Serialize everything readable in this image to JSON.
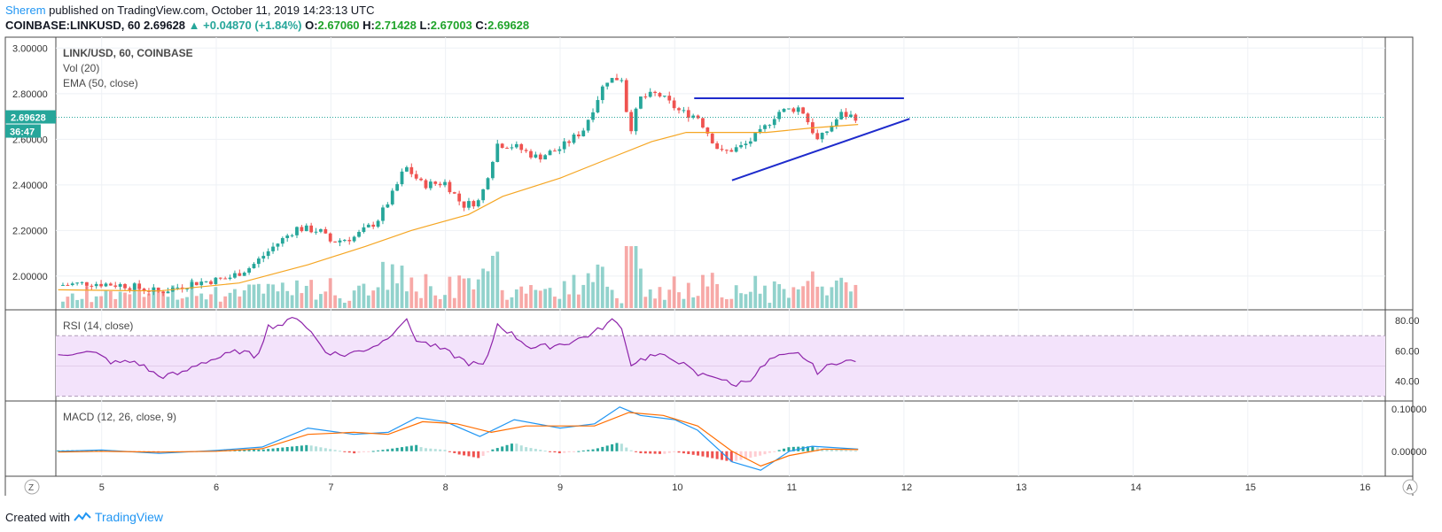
{
  "header": {
    "author": "Sherem",
    "published_text": "published on TradingView.com, October 11, 2019 14:23:13 UTC",
    "symbol": "COINBASE:LINKUSD, 60",
    "last": "2.69628",
    "change": "▲ +0.04870 (+1.84%)",
    "open_label": "O:",
    "open": "2.67060",
    "high_label": "H:",
    "high": "2.71428",
    "low_label": "L:",
    "low": "2.67003",
    "close_label": "C:",
    "close": "2.69628"
  },
  "footer": {
    "created_with": "Created with",
    "brand": "TradingView"
  },
  "colors": {
    "up": "#26a69a",
    "down": "#ef5350",
    "ema": "#f5a623",
    "trend": "#1e2bcc",
    "rsi": "#8e24aa",
    "rsi_band": "#f3e3fb",
    "macd": "#2196f3",
    "signal": "#ff6d00"
  },
  "chart_data": [
    {
      "type": "candlestick",
      "title": "LINK/USD, 60, COINBASE",
      "indicators": [
        "Vol (20)",
        "EMA (50, close)"
      ],
      "ylim": [
        1.86,
        3.04
      ],
      "y_ticks": [
        "3.00000",
        "2.80000",
        "2.60000",
        "2.40000",
        "2.20000",
        "2.00000"
      ],
      "x_ticks": [
        "5",
        "6",
        "7",
        "8",
        "9",
        "10",
        "11",
        "12",
        "13",
        "14",
        "15",
        "16"
      ],
      "x_range": [
        4.6,
        16.2
      ],
      "last_price_label": "2.69628",
      "last_price": 2.69628,
      "countdown_label": "36:47",
      "price_path": [
        [
          4.62,
          1.96
        ],
        [
          4.9,
          1.97
        ],
        [
          5.2,
          1.96
        ],
        [
          5.5,
          1.93
        ],
        [
          5.8,
          1.97
        ],
        [
          6.1,
          1.99
        ],
        [
          6.3,
          2.04
        ],
        [
          6.5,
          2.13
        ],
        [
          6.7,
          2.21
        ],
        [
          6.9,
          2.2
        ],
        [
          7.0,
          2.15
        ],
        [
          7.2,
          2.17
        ],
        [
          7.4,
          2.24
        ],
        [
          7.55,
          2.37
        ],
        [
          7.65,
          2.48
        ],
        [
          7.8,
          2.4
        ],
        [
          8.0,
          2.41
        ],
        [
          8.15,
          2.31
        ],
        [
          8.3,
          2.33
        ],
        [
          8.45,
          2.58
        ],
        [
          8.6,
          2.57
        ],
        [
          8.8,
          2.52
        ],
        [
          9.0,
          2.56
        ],
        [
          9.2,
          2.64
        ],
        [
          9.4,
          2.86
        ],
        [
          9.55,
          2.87
        ],
        [
          9.6,
          2.62
        ],
        [
          9.7,
          2.78
        ],
        [
          9.85,
          2.8
        ],
        [
          10.05,
          2.72
        ],
        [
          10.2,
          2.7
        ],
        [
          10.4,
          2.54
        ],
        [
          10.6,
          2.57
        ],
        [
          10.75,
          2.63
        ],
        [
          10.9,
          2.72
        ],
        [
          11.1,
          2.74
        ],
        [
          11.25,
          2.59
        ],
        [
          11.45,
          2.71
        ],
        [
          11.6,
          2.69628
        ]
      ],
      "ema_path": [
        [
          4.62,
          1.94
        ],
        [
          5.5,
          1.935
        ],
        [
          6.2,
          1.97
        ],
        [
          6.8,
          2.05
        ],
        [
          7.3,
          2.13
        ],
        [
          7.7,
          2.2
        ],
        [
          8.2,
          2.27
        ],
        [
          8.5,
          2.35
        ],
        [
          9.0,
          2.43
        ],
        [
          9.4,
          2.51
        ],
        [
          9.8,
          2.59
        ],
        [
          10.1,
          2.63
        ],
        [
          10.4,
          2.63
        ],
        [
          10.8,
          2.63
        ],
        [
          11.2,
          2.65
        ],
        [
          11.6,
          2.665
        ]
      ],
      "trendlines": [
        {
          "name": "resistance",
          "from": [
            10.17,
            2.78
          ],
          "to": [
            12.0,
            2.78
          ]
        },
        {
          "name": "support",
          "from": [
            10.5,
            2.42
          ],
          "to": [
            12.05,
            2.69
          ]
        }
      ],
      "volume_ylim": [
        0,
        1
      ]
    },
    {
      "type": "line",
      "title": "RSI (14, close)",
      "ylim": [
        28,
        86
      ],
      "y_ticks": [
        "80.00",
        "60.00",
        "40.00"
      ],
      "band": [
        30,
        70
      ],
      "values_path": [
        [
          4.62,
          56
        ],
        [
          4.8,
          60
        ],
        [
          4.95,
          58
        ],
        [
          5.1,
          52
        ],
        [
          5.3,
          53
        ],
        [
          5.4,
          48
        ],
        [
          5.5,
          43
        ],
        [
          5.7,
          45
        ],
        [
          5.85,
          52
        ],
        [
          6.0,
          55
        ],
        [
          6.2,
          60
        ],
        [
          6.35,
          56
        ],
        [
          6.45,
          76
        ],
        [
          6.6,
          78
        ],
        [
          6.7,
          83
        ],
        [
          6.8,
          75
        ],
        [
          6.95,
          60
        ],
        [
          7.1,
          57
        ],
        [
          7.3,
          61
        ],
        [
          7.45,
          66
        ],
        [
          7.65,
          81
        ],
        [
          7.75,
          67
        ],
        [
          7.9,
          63
        ],
        [
          8.05,
          58
        ],
        [
          8.2,
          52
        ],
        [
          8.35,
          50
        ],
        [
          8.45,
          78
        ],
        [
          8.6,
          70
        ],
        [
          8.75,
          62
        ],
        [
          8.9,
          63
        ],
        [
          9.1,
          66
        ],
        [
          9.3,
          72
        ],
        [
          9.45,
          80
        ],
        [
          9.55,
          76
        ],
        [
          9.6,
          51
        ],
        [
          9.8,
          57
        ],
        [
          10.0,
          55
        ],
        [
          10.2,
          44
        ],
        [
          10.35,
          44
        ],
        [
          10.5,
          37
        ],
        [
          10.65,
          41
        ],
        [
          10.85,
          55
        ],
        [
          11.1,
          58
        ],
        [
          11.25,
          46
        ],
        [
          11.45,
          54
        ],
        [
          11.6,
          52
        ]
      ]
    },
    {
      "type": "line",
      "title": "MACD (12, 26, close, 9)",
      "ylim": [
        -0.055,
        0.115
      ],
      "y_ticks": [
        "0.10000",
        "0.00000"
      ],
      "series": [
        {
          "name": "MACD",
          "values_path": [
            [
              4.62,
              0.0
            ],
            [
              5.0,
              0.003
            ],
            [
              5.5,
              -0.005
            ],
            [
              6.0,
              0.002
            ],
            [
              6.4,
              0.01
            ],
            [
              6.8,
              0.055
            ],
            [
              7.2,
              0.04
            ],
            [
              7.5,
              0.045
            ],
            [
              7.75,
              0.08
            ],
            [
              8.0,
              0.07
            ],
            [
              8.3,
              0.035
            ],
            [
              8.6,
              0.075
            ],
            [
              9.0,
              0.055
            ],
            [
              9.3,
              0.065
            ],
            [
              9.52,
              0.105
            ],
            [
              9.7,
              0.085
            ],
            [
              10.0,
              0.075
            ],
            [
              10.2,
              0.05
            ],
            [
              10.5,
              -0.025
            ],
            [
              10.75,
              -0.045
            ],
            [
              11.0,
              0.0
            ],
            [
              11.2,
              0.012
            ],
            [
              11.6,
              0.005
            ]
          ]
        },
        {
          "name": "Signal",
          "values_path": [
            [
              4.62,
              -0.002
            ],
            [
              5.0,
              0.0
            ],
            [
              5.5,
              -0.002
            ],
            [
              6.0,
              0.0
            ],
            [
              6.4,
              0.006
            ],
            [
              6.8,
              0.04
            ],
            [
              7.2,
              0.045
            ],
            [
              7.5,
              0.04
            ],
            [
              7.8,
              0.07
            ],
            [
              8.1,
              0.065
            ],
            [
              8.4,
              0.045
            ],
            [
              8.7,
              0.06
            ],
            [
              9.0,
              0.06
            ],
            [
              9.3,
              0.06
            ],
            [
              9.6,
              0.092
            ],
            [
              9.9,
              0.085
            ],
            [
              10.2,
              0.06
            ],
            [
              10.5,
              0.0
            ],
            [
              10.75,
              -0.035
            ],
            [
              11.0,
              -0.01
            ],
            [
              11.3,
              0.005
            ],
            [
              11.6,
              0.004
            ]
          ]
        }
      ]
    }
  ]
}
